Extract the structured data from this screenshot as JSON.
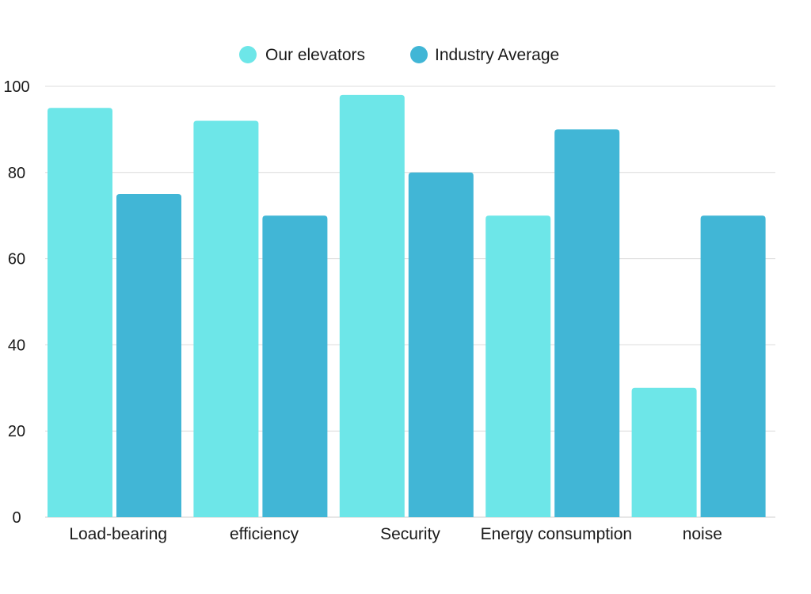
{
  "chart_data": {
    "type": "bar",
    "title": "",
    "xlabel": "",
    "ylabel": "",
    "categories": [
      "Load-bearing",
      "efficiency",
      "Security",
      "Energy consumption",
      "noise"
    ],
    "series": [
      {
        "name": "Our elevators",
        "values": [
          95,
          92,
          98,
          70,
          30
        ],
        "color": "#6de6e8"
      },
      {
        "name": "Industry Average",
        "values": [
          75,
          70,
          80,
          90,
          70
        ],
        "color": "#41b6d6"
      }
    ],
    "ylim": [
      0,
      100
    ],
    "yticks": [
      0,
      20,
      40,
      60,
      80,
      100
    ],
    "grid": true,
    "legend_position": "top-center"
  }
}
